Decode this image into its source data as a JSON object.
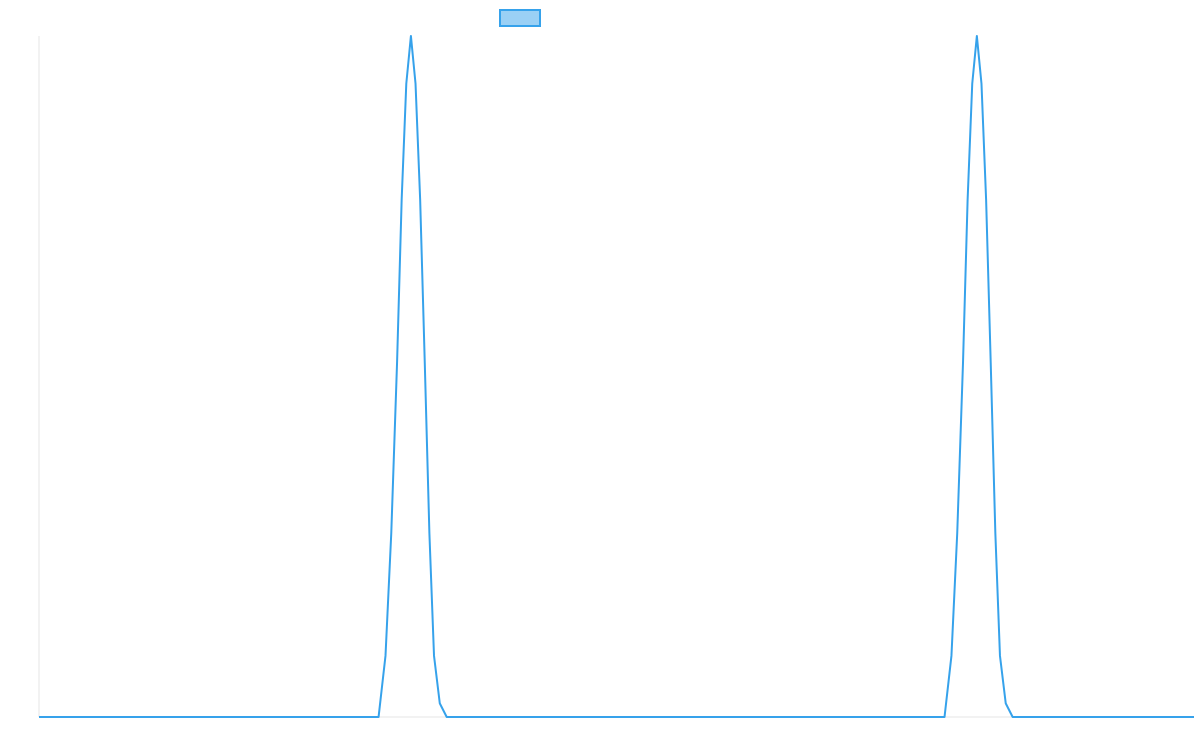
{
  "chart_data": {
    "type": "line",
    "title": "",
    "xlabel": "",
    "ylabel": "",
    "xlim": [
      0,
      10
    ],
    "ylim": [
      0,
      1
    ],
    "grid": false,
    "legend": "top",
    "series": [
      {
        "name": "",
        "color": "#36a2eb",
        "x": [
          0,
          2.94,
          3.0,
          3.05,
          3.1,
          3.14,
          3.18,
          3.22,
          3.26,
          3.3,
          3.34,
          3.38,
          3.42,
          3.47,
          3.53,
          3.6,
          7.84,
          7.9,
          7.95,
          8.0,
          8.04,
          8.08,
          8.12,
          8.16,
          8.2,
          8.24,
          8.28,
          8.32,
          8.37,
          8.43,
          8.5,
          10
        ],
        "y": [
          0,
          0,
          0.09,
          0.27,
          0.52,
          0.76,
          0.93,
          1.0,
          0.93,
          0.76,
          0.52,
          0.27,
          0.09,
          0.02,
          0,
          0,
          0,
          0.09,
          0.27,
          0.52,
          0.76,
          0.93,
          1.0,
          0.93,
          0.76,
          0.52,
          0.27,
          0.09,
          0.02,
          0,
          0,
          0
        ]
      }
    ]
  }
}
